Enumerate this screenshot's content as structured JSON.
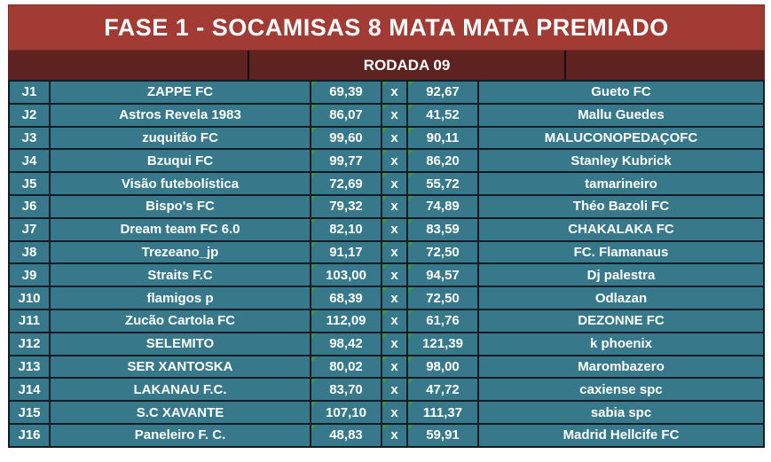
{
  "title": "FASE 1 - SOCAMISAS 8 MATA MATA PREMIADO",
  "round_label": "RODADA 09",
  "colors": {
    "title_bg": "#a23b33",
    "round_bg": "#5e2220",
    "cell_bg": "#37798a",
    "border": "#111c26",
    "text": "#ffffff",
    "triangle": "#3e9444"
  },
  "matches": [
    {
      "id": "J1",
      "home": "ZAPPE FC",
      "home_score": "69,39",
      "vs": "x",
      "away_score": "92,67",
      "away": "Gueto FC"
    },
    {
      "id": "J2",
      "home": "Astros Revela 1983",
      "home_score": "86,07",
      "vs": "x",
      "away_score": "41,52",
      "away": "Mallu Guedes"
    },
    {
      "id": "J3",
      "home": "zuquitão FC",
      "home_score": "99,60",
      "vs": "x",
      "away_score": "90,11",
      "away": "MALUCONOPEDAÇOFC"
    },
    {
      "id": "J4",
      "home": "Bzuqui FC",
      "home_score": "99,77",
      "vs": "x",
      "away_score": "86,20",
      "away": "Stanley Kubrick"
    },
    {
      "id": "J5",
      "home": "Visão futebolística",
      "home_score": "72,69",
      "vs": "x",
      "away_score": "55,72",
      "away": "tamarineiro"
    },
    {
      "id": "J6",
      "home": "Bispo's FC",
      "home_score": "79,32",
      "vs": "x",
      "away_score": "74,89",
      "away": "Théo Bazoli FC"
    },
    {
      "id": "J7",
      "home": "Dream team FC 6.0",
      "home_score": "82,10",
      "vs": "x",
      "away_score": "83,59",
      "away": "CHAKALAKA FC"
    },
    {
      "id": "J8",
      "home": "Trezeano_jp",
      "home_score": "91,17",
      "vs": "x",
      "away_score": "72,50",
      "away": "FC. Flamanaus"
    },
    {
      "id": "J9",
      "home": "Straits F.C",
      "home_score": "103,00",
      "vs": "x",
      "away_score": "94,57",
      "away": "Dj palestra"
    },
    {
      "id": "J10",
      "home": "flamigos p",
      "home_score": "68,39",
      "vs": "x",
      "away_score": "72,50",
      "away": "Odlazan"
    },
    {
      "id": "J11",
      "home": "Zucão Cartola FC",
      "home_score": "112,09",
      "vs": "x",
      "away_score": "61,76",
      "away": "DEZONNE FC"
    },
    {
      "id": "J12",
      "home": "SELEMITO",
      "home_score": "98,42",
      "vs": "x",
      "away_score": "121,39",
      "away": "k phoenix"
    },
    {
      "id": "J13",
      "home": "SER XANTOSKA",
      "home_score": "80,02",
      "vs": "x",
      "away_score": "98,00",
      "away": "Marombazero"
    },
    {
      "id": "J14",
      "home": "LAKANAU F.C.",
      "home_score": "83,70",
      "vs": "x",
      "away_score": "47,72",
      "away": "caxiense spc"
    },
    {
      "id": "J15",
      "home": "S.C XAVANTE",
      "home_score": "107,10",
      "vs": "x",
      "away_score": "111,37",
      "away": "sabia spc"
    },
    {
      "id": "J16",
      "home": "Paneleiro F. C.",
      "home_score": "48,83",
      "vs": "x",
      "away_score": "59,91",
      "away": "Madrid Hellcife FC"
    }
  ]
}
